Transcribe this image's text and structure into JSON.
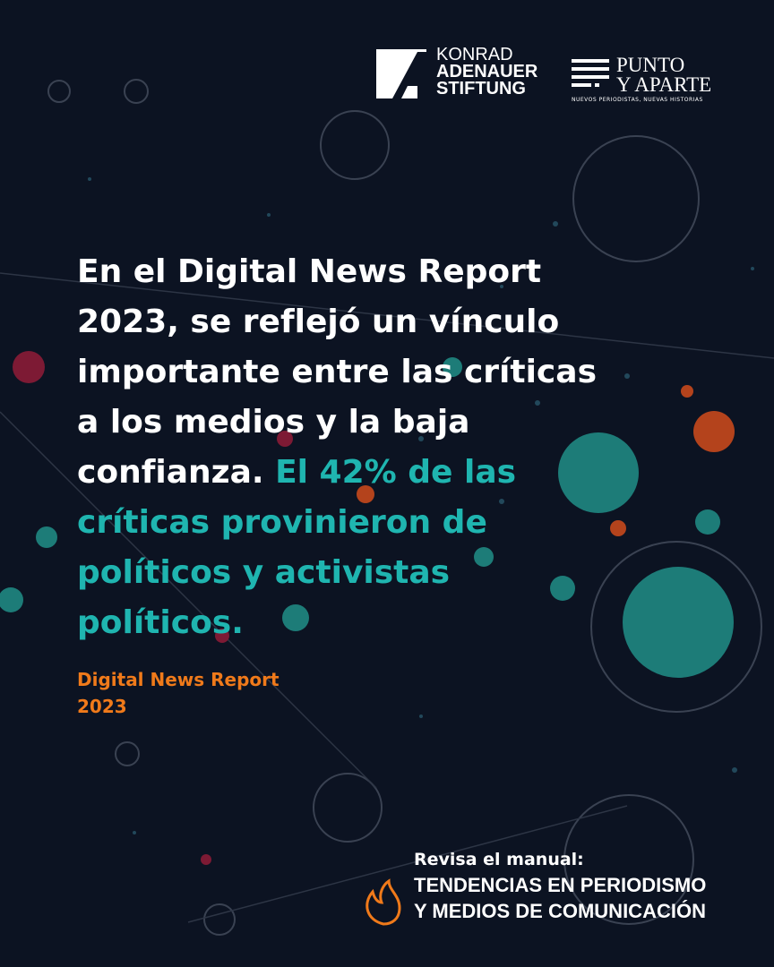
{
  "logos": {
    "kas": [
      "KONRAD",
      "ADENAUER",
      "STIFTUNG"
    ],
    "punto": {
      "line1": "PUNTO",
      "line2": "Y APARTE",
      "tagline": "NUEVOS PERIODISTAS, NUEVAS HISTORIAS"
    }
  },
  "quote": {
    "intro": "En el Digital News Report 2023, se reflejó un vínculo importante entre las críticas a los medios y la baja confianza.",
    "highlight": "El 42% de las críticas provinieron de políticos y activistas políticos."
  },
  "source": {
    "line1": "Digital News Report",
    "line2": "2023"
  },
  "footer": {
    "prompt": "Revisa el manual:",
    "title1": "TENDENCIAS EN PERIODISMO",
    "title2": "Y MEDIOS DE COMUNICACIÓN"
  }
}
